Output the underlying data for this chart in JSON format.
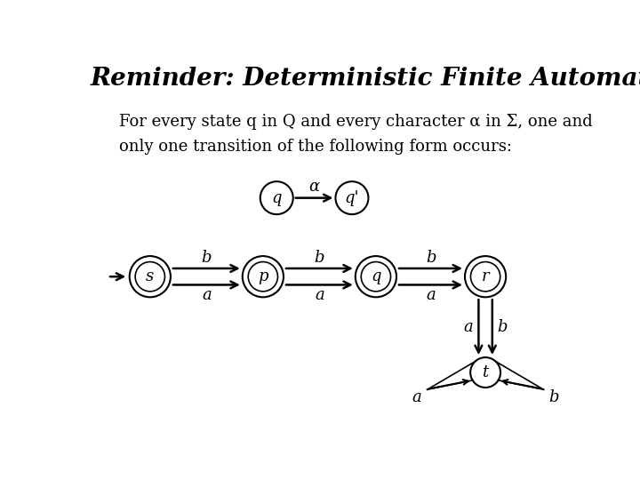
{
  "title": "Reminder: Deterministic Finite Automata (DFA)",
  "body_text_line1": "For every state q in Q and every character α in Σ, one and",
  "body_text_line2": "only one transition of the following form occurs:",
  "bg_color": "#ffffff",
  "text_color": "#000000",
  "title_fontsize": 20,
  "body_fontsize": 13,
  "diagram_fontsize": 13
}
